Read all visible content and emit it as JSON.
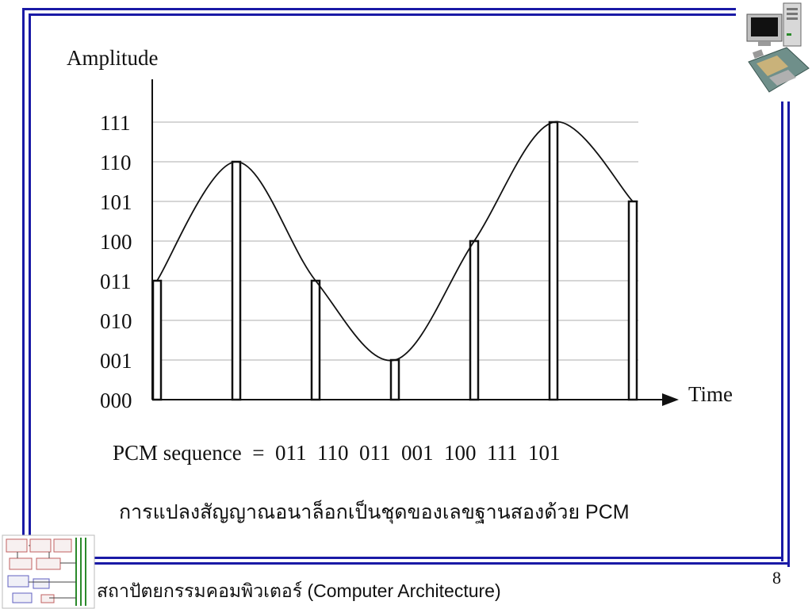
{
  "slide": {
    "page_number": "8",
    "caption": "การแปลงสัญญาณอนาล็อกเป็นชุดของเลขฐานสองด้วย PCM",
    "footer_title": "สถาปัตยกรรมคอมพิวเตอร์ (Computer Architecture)",
    "pcm_sequence_label": "PCM sequence  =  011  110  011  001  100  111  101",
    "colors": {
      "frame": "#1a1aa6",
      "grid": "#c8c8c8",
      "curve": "#111111"
    },
    "icons": [
      "computer-tower-icon",
      "motherboard-icon",
      "system-diagram-icon"
    ]
  },
  "chart_data": {
    "type": "pcm-sampling",
    "ylabel": "Amplitude",
    "xlabel": "Time",
    "levels": [
      "000",
      "001",
      "010",
      "011",
      "100",
      "101",
      "110",
      "111"
    ],
    "samples": [
      {
        "index": 1,
        "level": 3,
        "code": "011"
      },
      {
        "index": 2,
        "level": 6,
        "code": "110"
      },
      {
        "index": 3,
        "level": 3,
        "code": "011"
      },
      {
        "index": 4,
        "level": 1,
        "code": "001"
      },
      {
        "index": 5,
        "level": 4,
        "code": "100"
      },
      {
        "index": 6,
        "level": 7,
        "code": "111"
      },
      {
        "index": 7,
        "level": 5,
        "code": "101"
      }
    ],
    "grid": true
  }
}
